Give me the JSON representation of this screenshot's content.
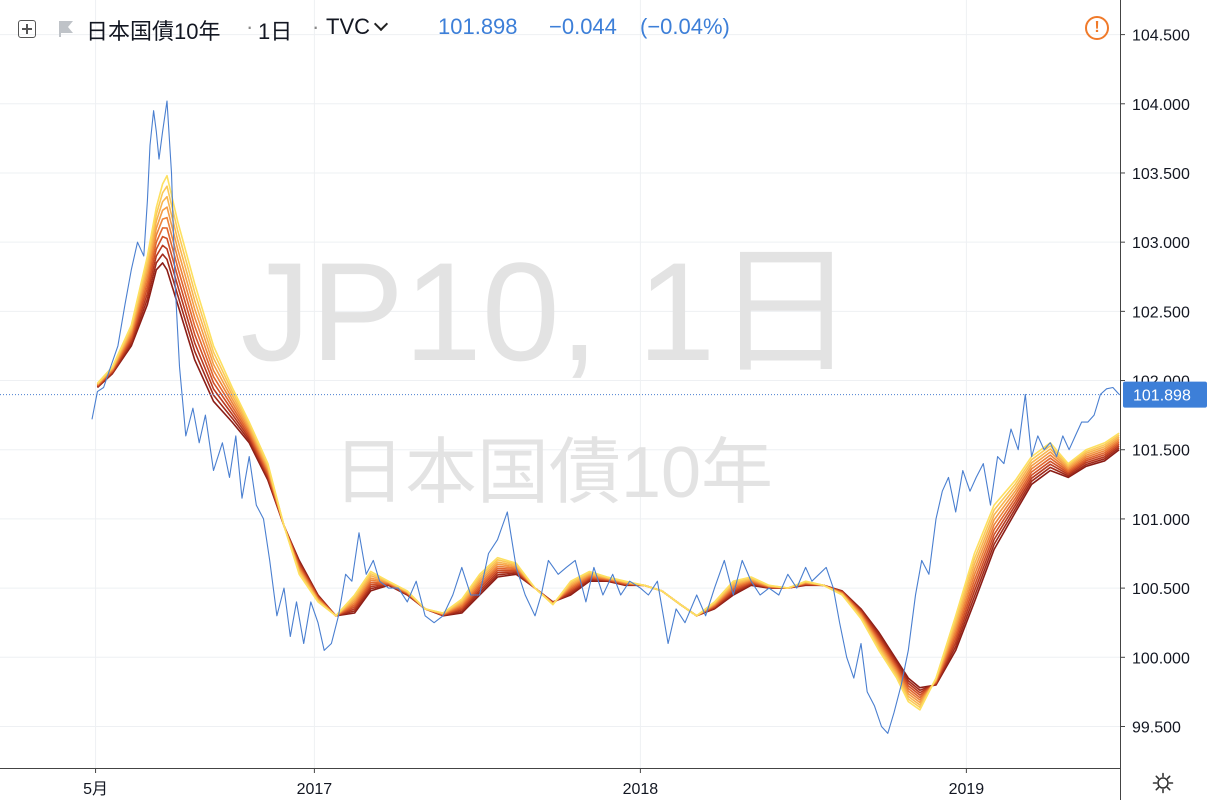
{
  "header": {
    "symbol": "日本国債10年",
    "interval": "1日",
    "source": "TVC",
    "last_price": "101.898",
    "change": "−0.044",
    "change_pct": "(−0.04%)"
  },
  "watermark": {
    "line1": "JP10, 1日",
    "line2": "日本国債10年"
  },
  "colors": {
    "price_line": "#4a7fd0",
    "accent": "#3d7fd8",
    "warning": "#f07a2a",
    "ribbon": [
      "#8b1d16",
      "#a12a1a",
      "#b8391f",
      "#cf4f27",
      "#e0662f",
      "#ec8239",
      "#f49c45",
      "#f8b44f",
      "#fbc958",
      "#fde060"
    ]
  },
  "chart_data": {
    "type": "line",
    "title": "",
    "xlabel": "",
    "ylabel": "",
    "ylim": [
      99.2,
      104.75
    ],
    "xlim": [
      "2016-01-15",
      "2019-06-22"
    ],
    "x_ticks": [
      {
        "date": "2016-05-01",
        "label": "5月"
      },
      {
        "date": "2017-01-01",
        "label": "2017"
      },
      {
        "date": "2018-01-01",
        "label": "2018"
      },
      {
        "date": "2019-01-01",
        "label": "2019"
      }
    ],
    "y_ticks": [
      99.5,
      100.0,
      100.5,
      101.0,
      101.5,
      102.0,
      102.5,
      103.0,
      103.5,
      104.0,
      104.5
    ],
    "last_value_label": "101.898",
    "last_value": 101.898,
    "grid": true,
    "series": [
      {
        "type": "price",
        "x": [
          "2016-04-27",
          "2016-05-03",
          "2016-05-10",
          "2016-05-18",
          "2016-05-26",
          "2016-06-03",
          "2016-06-10",
          "2016-06-17",
          "2016-06-24",
          "2016-06-28",
          "2016-07-01",
          "2016-07-05",
          "2016-07-08",
          "2016-07-11",
          "2016-07-15",
          "2016-07-20",
          "2016-07-25",
          "2016-07-29",
          "2016-08-03",
          "2016-08-10",
          "2016-08-18",
          "2016-08-25",
          "2016-09-01",
          "2016-09-10",
          "2016-09-20",
          "2016-09-28",
          "2016-10-05",
          "2016-10-12",
          "2016-10-20",
          "2016-10-28",
          "2016-11-05",
          "2016-11-12",
          "2016-11-20",
          "2016-11-28",
          "2016-12-05",
          "2016-12-12",
          "2016-12-20",
          "2016-12-28",
          "2017-01-05",
          "2017-01-12",
          "2017-01-20",
          "2017-01-28",
          "2017-02-05",
          "2017-02-12",
          "2017-02-20",
          "2017-02-28",
          "2017-03-08",
          "2017-03-15",
          "2017-03-25",
          "2017-04-05",
          "2017-04-15",
          "2017-04-25",
          "2017-05-05",
          "2017-05-15",
          "2017-05-25",
          "2017-06-05",
          "2017-06-15",
          "2017-06-25",
          "2017-07-05",
          "2017-07-15",
          "2017-07-25",
          "2017-08-05",
          "2017-08-15",
          "2017-08-25",
          "2017-09-05",
          "2017-09-12",
          "2017-09-20",
          "2017-10-01",
          "2017-10-10",
          "2017-10-20",
          "2017-11-01",
          "2017-11-10",
          "2017-11-20",
          "2017-12-01",
          "2017-12-10",
          "2017-12-20",
          "2018-01-01",
          "2018-01-10",
          "2018-01-20",
          "2018-02-01",
          "2018-02-10",
          "2018-02-20",
          "2018-03-05",
          "2018-03-15",
          "2018-03-25",
          "2018-04-05",
          "2018-04-15",
          "2018-04-25",
          "2018-05-05",
          "2018-05-15",
          "2018-05-25",
          "2018-06-05",
          "2018-06-15",
          "2018-06-25",
          "2018-07-05",
          "2018-07-12",
          "2018-07-20",
          "2018-07-28",
          "2018-08-05",
          "2018-08-12",
          "2018-08-20",
          "2018-08-28",
          "2018-09-05",
          "2018-09-12",
          "2018-09-20",
          "2018-09-28",
          "2018-10-05",
          "2018-10-12",
          "2018-10-20",
          "2018-10-28",
          "2018-11-05",
          "2018-11-12",
          "2018-11-20",
          "2018-11-28",
          "2018-12-05",
          "2018-12-12",
          "2018-12-20",
          "2018-12-28",
          "2019-01-05",
          "2019-01-12",
          "2019-01-20",
          "2019-01-28",
          "2019-02-05",
          "2019-02-12",
          "2019-02-20",
          "2019-02-28",
          "2019-03-08",
          "2019-03-15",
          "2019-03-22",
          "2019-03-29",
          "2019-04-05",
          "2019-04-12",
          "2019-04-19",
          "2019-04-26",
          "2019-05-03",
          "2019-05-10",
          "2019-05-17",
          "2019-05-24",
          "2019-05-31",
          "2019-06-07",
          "2019-06-14",
          "2019-06-21"
        ],
        "values": [
          101.72,
          101.92,
          101.95,
          102.1,
          102.25,
          102.55,
          102.8,
          103.0,
          102.9,
          103.3,
          103.7,
          103.95,
          103.8,
          103.6,
          103.8,
          104.02,
          103.5,
          102.7,
          102.1,
          101.6,
          101.8,
          101.55,
          101.75,
          101.35,
          101.55,
          101.3,
          101.6,
          101.15,
          101.45,
          101.1,
          101.0,
          100.7,
          100.3,
          100.5,
          100.15,
          100.4,
          100.1,
          100.4,
          100.25,
          100.05,
          100.1,
          100.3,
          100.6,
          100.55,
          100.9,
          100.6,
          100.7,
          100.55,
          100.5,
          100.5,
          100.4,
          100.55,
          100.3,
          100.25,
          100.3,
          100.45,
          100.65,
          100.45,
          100.45,
          100.75,
          100.85,
          101.05,
          100.65,
          100.45,
          100.3,
          100.45,
          100.7,
          100.6,
          100.65,
          100.7,
          100.4,
          100.65,
          100.45,
          100.6,
          100.45,
          100.55,
          100.5,
          100.45,
          100.55,
          100.1,
          100.35,
          100.25,
          100.45,
          100.3,
          100.5,
          100.7,
          100.45,
          100.7,
          100.55,
          100.45,
          100.5,
          100.45,
          100.6,
          100.5,
          100.65,
          100.55,
          100.6,
          100.65,
          100.5,
          100.25,
          100.0,
          99.85,
          100.1,
          99.75,
          99.65,
          99.5,
          99.45,
          99.6,
          99.8,
          100.05,
          100.45,
          100.7,
          100.6,
          101.0,
          101.2,
          101.3,
          101.05,
          101.35,
          101.2,
          101.3,
          101.4,
          101.1,
          101.45,
          101.4,
          101.65,
          101.5,
          101.9,
          101.45,
          101.6,
          101.5,
          101.55,
          101.45,
          101.6,
          101.5,
          101.6,
          101.7,
          101.7,
          101.75,
          101.9,
          101.94,
          101.95,
          101.9
        ]
      },
      {
        "type": "ribbon",
        "x": [
          "2016-05-03",
          "2016-05-20",
          "2016-06-10",
          "2016-06-28",
          "2016-07-08",
          "2016-07-15",
          "2016-07-20",
          "2016-08-01",
          "2016-08-20",
          "2016-09-10",
          "2016-10-01",
          "2016-10-20",
          "2016-11-10",
          "2016-11-28",
          "2016-12-15",
          "2017-01-05",
          "2017-01-25",
          "2017-02-15",
          "2017-03-05",
          "2017-03-25",
          "2017-04-15",
          "2017-05-05",
          "2017-05-25",
          "2017-06-15",
          "2017-07-05",
          "2017-07-25",
          "2017-08-15",
          "2017-09-05",
          "2017-09-25",
          "2017-10-15",
          "2017-11-05",
          "2017-11-25",
          "2017-12-15",
          "2018-01-05",
          "2018-01-25",
          "2018-02-15",
          "2018-03-05",
          "2018-03-25",
          "2018-04-15",
          "2018-05-05",
          "2018-05-25",
          "2018-06-15",
          "2018-07-05",
          "2018-07-25",
          "2018-08-15",
          "2018-09-05",
          "2018-09-25",
          "2018-10-15",
          "2018-10-28",
          "2018-11-10",
          "2018-11-28",
          "2018-12-20",
          "2019-01-10",
          "2019-02-01",
          "2019-02-25",
          "2019-03-15",
          "2019-04-05",
          "2019-04-25",
          "2019-05-15",
          "2019-06-05",
          "2019-06-21"
        ],
        "fast": [
          101.98,
          102.1,
          102.4,
          102.9,
          103.25,
          103.42,
          103.48,
          103.15,
          102.7,
          102.25,
          101.95,
          101.7,
          101.4,
          100.95,
          100.6,
          100.4,
          100.3,
          100.45,
          100.62,
          100.55,
          100.48,
          100.35,
          100.32,
          100.42,
          100.6,
          100.72,
          100.68,
          100.5,
          100.38,
          100.55,
          100.62,
          100.58,
          100.55,
          100.52,
          100.48,
          100.38,
          100.3,
          100.4,
          100.55,
          100.58,
          100.52,
          100.5,
          100.55,
          100.52,
          100.45,
          100.28,
          100.05,
          99.85,
          99.68,
          99.62,
          99.85,
          100.3,
          100.75,
          101.1,
          101.28,
          101.45,
          101.55,
          101.4,
          101.5,
          101.55,
          101.62
        ],
        "slow": [
          101.95,
          102.05,
          102.25,
          102.55,
          102.8,
          102.85,
          102.8,
          102.55,
          102.15,
          101.85,
          101.7,
          101.55,
          101.28,
          100.95,
          100.7,
          100.45,
          100.3,
          100.32,
          100.48,
          100.52,
          100.45,
          100.35,
          100.3,
          100.32,
          100.45,
          100.58,
          100.6,
          100.5,
          100.4,
          100.45,
          100.55,
          100.55,
          100.52,
          100.52,
          100.48,
          100.38,
          100.3,
          100.35,
          100.45,
          100.52,
          100.5,
          100.5,
          100.52,
          100.52,
          100.48,
          100.35,
          100.18,
          99.98,
          99.85,
          99.78,
          99.8,
          100.05,
          100.4,
          100.78,
          101.05,
          101.25,
          101.35,
          101.3,
          101.38,
          101.42,
          101.5
        ]
      }
    ]
  }
}
